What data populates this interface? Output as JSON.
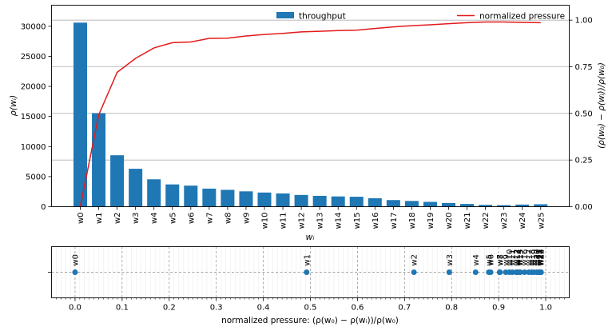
{
  "chart_data": [
    {
      "type": "bar",
      "xlabel": "w_i",
      "ylabel": "ρ(w_i)",
      "y2label": "(ρ(w0) − ρ(w_i))/ρ(w0)",
      "categories": [
        "w0",
        "w1",
        "w2",
        "w3",
        "w4",
        "w5",
        "w6",
        "w7",
        "w8",
        "w9",
        "w10",
        "w11",
        "w12",
        "w13",
        "w14",
        "w15",
        "w16",
        "w17",
        "w18",
        "w19",
        "w20",
        "w21",
        "w22",
        "w23",
        "w24",
        "w25"
      ],
      "ylim": [
        0,
        33500
      ],
      "y2lim": [
        0,
        1.08
      ],
      "yticks": [
        0,
        5000,
        10000,
        15000,
        20000,
        25000,
        30000
      ],
      "y2ticks": [
        0.0,
        0.25,
        0.5,
        0.75,
        1.0
      ],
      "y2tick_labels": [
        "0.00",
        "0.25",
        "0.50",
        "0.75",
        "1.00"
      ],
      "grid": "horizontal lines at right-axis ticks",
      "legend_placement": "top",
      "series": [
        {
          "name": "throughput",
          "type": "bar",
          "axis": "left",
          "color": "#1f77b4",
          "values": [
            30600,
            15550,
            8550,
            6300,
            4550,
            3700,
            3500,
            3000,
            2800,
            2550,
            2350,
            2200,
            1950,
            1800,
            1700,
            1650,
            1400,
            1100,
            950,
            800,
            600,
            450,
            300,
            250,
            350,
            400
          ]
        },
        {
          "name": "normalized pressure",
          "type": "line",
          "axis": "right",
          "color": "#e31a1c",
          "values": [
            0.0,
            0.492,
            0.72,
            0.795,
            0.851,
            0.879,
            0.883,
            0.902,
            0.903,
            0.915,
            0.923,
            0.929,
            0.937,
            0.94,
            0.944,
            0.946,
            0.955,
            0.964,
            0.97,
            0.975,
            0.981,
            0.986,
            0.99,
            0.99,
            0.988,
            0.986
          ]
        }
      ]
    },
    {
      "type": "scatter",
      "xlabel": "normalized pressure: (ρ(w0) − ρ(w_i))/ρ(w0)",
      "xlim": [
        -0.05,
        1.05
      ],
      "xticks": [
        0.0,
        0.1,
        0.2,
        0.3,
        0.4,
        0.5,
        0.6,
        0.7,
        0.8,
        0.9,
        1.0
      ],
      "xtick_labels": [
        "0.0",
        "0.1",
        "0.2",
        "0.3",
        "0.4",
        "0.5",
        "0.6",
        "0.7",
        "0.8",
        "0.9",
        "1.0"
      ],
      "grid": "dashed major vertical and horizontal lines",
      "color": "#1f77b4",
      "points": [
        {
          "label": "w0",
          "x": 0.0
        },
        {
          "label": "w1",
          "x": 0.492
        },
        {
          "label": "w2",
          "x": 0.72
        },
        {
          "label": "w3",
          "x": 0.795
        },
        {
          "label": "w4",
          "x": 0.851
        },
        {
          "label": "w5",
          "x": 0.879
        },
        {
          "label": "w6",
          "x": 0.883
        },
        {
          "label": "w7",
          "x": 0.902
        },
        {
          "label": "w8",
          "x": 0.903
        },
        {
          "label": "w9",
          "x": 0.915
        },
        {
          "label": "w10",
          "x": 0.923
        },
        {
          "label": "w11",
          "x": 0.929
        },
        {
          "label": "w12",
          "x": 0.937
        },
        {
          "label": "w13",
          "x": 0.94
        },
        {
          "label": "w14",
          "x": 0.944
        },
        {
          "label": "w15",
          "x": 0.946
        },
        {
          "label": "w16",
          "x": 0.955
        },
        {
          "label": "w17",
          "x": 0.964
        },
        {
          "label": "w18",
          "x": 0.97
        },
        {
          "label": "w19",
          "x": 0.975
        },
        {
          "label": "w20",
          "x": 0.981
        },
        {
          "label": "w21",
          "x": 0.986
        },
        {
          "label": "w22",
          "x": 0.99
        },
        {
          "label": "w23",
          "x": 0.99
        },
        {
          "label": "w24",
          "x": 0.988
        },
        {
          "label": "w25",
          "x": 0.986
        }
      ]
    }
  ]
}
